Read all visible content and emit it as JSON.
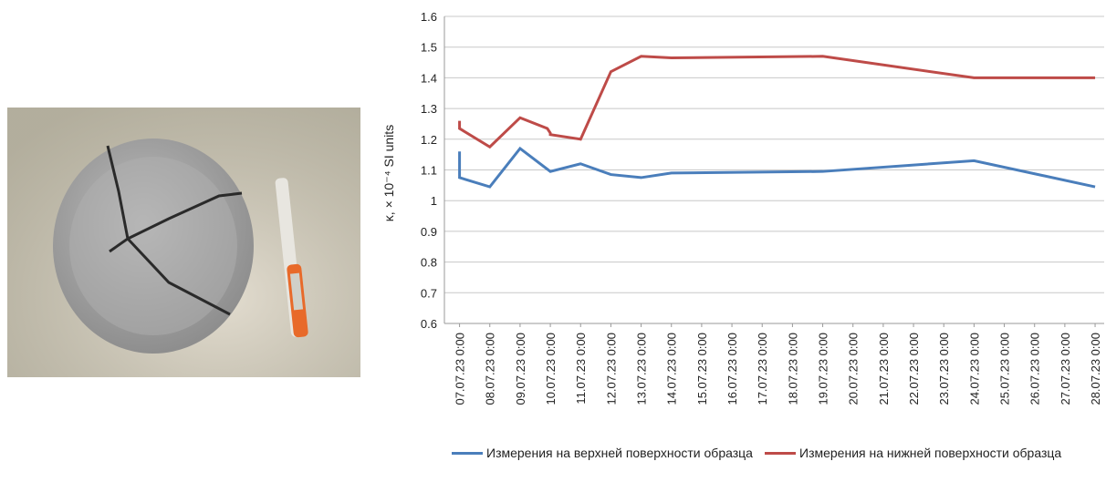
{
  "chart_data": {
    "type": "line",
    "ylabel": "κ, × 10⁻⁴ SI units",
    "ylim": [
      0.6,
      1.6
    ],
    "yticks": [
      0.6,
      0.7,
      0.8,
      0.9,
      1,
      1.1,
      1.2,
      1.3,
      1.4,
      1.5,
      1.6
    ],
    "grid": true,
    "xlim": [
      -0.5,
      21.3
    ],
    "xticks": [
      {
        "value": 0,
        "label": "07.07.23 0:00"
      },
      {
        "value": 1,
        "label": "08.07.23 0:00"
      },
      {
        "value": 2,
        "label": "09.07.23 0:00"
      },
      {
        "value": 3,
        "label": "10.07.23 0:00"
      },
      {
        "value": 4,
        "label": "11.07.23 0:00"
      },
      {
        "value": 5,
        "label": "12.07.23 0:00"
      },
      {
        "value": 6,
        "label": "13.07.23 0:00"
      },
      {
        "value": 7,
        "label": "14.07.23 0:00"
      },
      {
        "value": 8,
        "label": "15.07.23 0:00"
      },
      {
        "value": 9,
        "label": "16.07.23 0:00"
      },
      {
        "value": 10,
        "label": "17.07.23 0:00"
      },
      {
        "value": 11,
        "label": "18.07.23 0:00"
      },
      {
        "value": 12,
        "label": "19.07.23 0:00"
      },
      {
        "value": 13,
        "label": "20.07.23 0:00"
      },
      {
        "value": 14,
        "label": "21.07.23 0:00"
      },
      {
        "value": 15,
        "label": "22.07.23 0:00"
      },
      {
        "value": 16,
        "label": "23.07.23 0:00"
      },
      {
        "value": 17,
        "label": "24.07.23 0:00"
      },
      {
        "value": 18,
        "label": "25.07.23 0:00"
      },
      {
        "value": 19,
        "label": "26.07.23 0:00"
      },
      {
        "value": 20,
        "label": "27.07.23 0:00"
      },
      {
        "value": 21,
        "label": "28.07.23 0:00"
      }
    ],
    "series": [
      {
        "name": "Измерения на верхней поверхности образца",
        "color": "#4a7ebb",
        "x": [
          0,
          0,
          1,
          2,
          3,
          4,
          5,
          6,
          7,
          12,
          17,
          21
        ],
        "values": [
          1.16,
          1.075,
          1.045,
          1.17,
          1.095,
          1.12,
          1.085,
          1.075,
          1.09,
          1.095,
          1.13,
          1.045
        ]
      },
      {
        "name": "Измерения на нижней поверхности образца",
        "color": "#be4b48",
        "x": [
          0,
          0,
          1,
          2,
          2.9,
          3,
          3,
          4,
          5,
          6,
          7,
          12,
          17,
          21
        ],
        "values": [
          1.26,
          1.235,
          1.175,
          1.27,
          1.235,
          1.22,
          1.215,
          1.2,
          1.42,
          1.47,
          1.465,
          1.47,
          1.4,
          1.4
        ]
      }
    ]
  }
}
